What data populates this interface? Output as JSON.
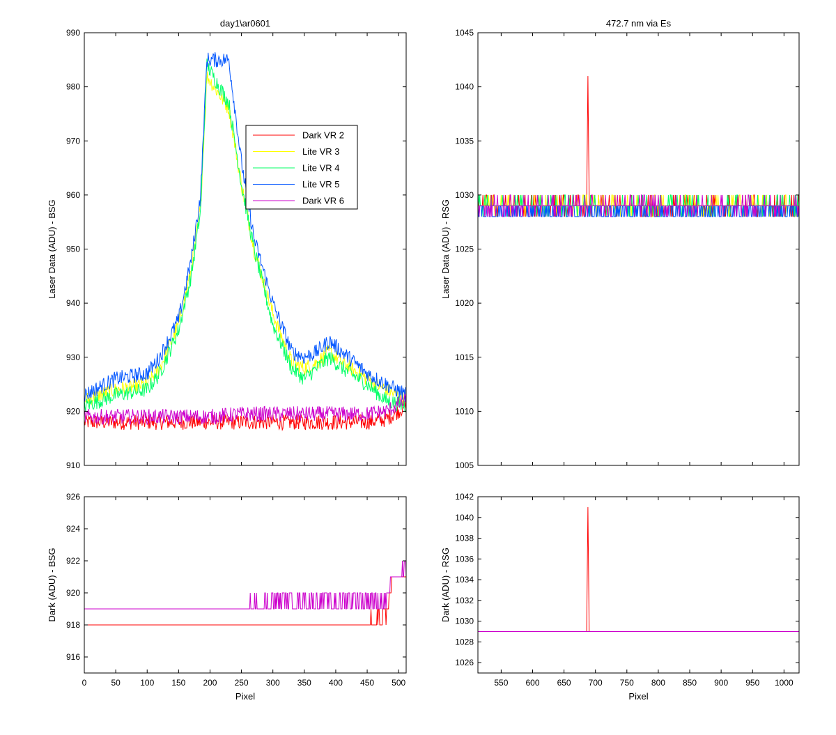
{
  "colors": {
    "dark_vr2": "#ff0000",
    "lite_vr3": "#ffff00",
    "lite_vr4": "#00ff66",
    "lite_vr5": "#0055ff",
    "dark_vr6": "#cc00cc"
  },
  "chart_data": [
    {
      "id": "top-left",
      "type": "line",
      "title": "day1\\ar0601",
      "xlabel": "",
      "ylabel": "Laser Data (ADU) - BSG",
      "xlim": [
        0,
        512
      ],
      "ylim": [
        910,
        990
      ],
      "xticks": [
        0,
        50,
        100,
        150,
        200,
        250,
        300,
        350,
        400,
        450,
        500
      ],
      "yticks": [
        910,
        920,
        930,
        940,
        950,
        960,
        970,
        980,
        990
      ],
      "legend": {
        "placement": "upper-center",
        "entries": [
          "Dark VR 2",
          "Lite VR 3",
          "Lite VR 4",
          "Lite VR 5",
          "Dark VR 6"
        ]
      },
      "series": [
        {
          "name": "Dark VR 2",
          "color_key": "dark_vr2",
          "x": [
            0,
            50,
            100,
            150,
            200,
            250,
            300,
            350,
            400,
            450,
            480,
            512
          ],
          "y": [
            918,
            918,
            918,
            918,
            918,
            918,
            918,
            918,
            918,
            918,
            918.5,
            921
          ]
        },
        {
          "name": "Lite VR 3",
          "color_key": "lite_vr3",
          "x": [
            0,
            50,
            100,
            120,
            150,
            170,
            185,
            195,
            230,
            250,
            270,
            300,
            330,
            350,
            370,
            390,
            410,
            450,
            480,
            512
          ],
          "y": [
            922,
            924,
            925,
            928,
            936,
            946,
            958,
            982,
            976,
            962,
            950,
            938,
            929,
            928,
            929,
            931,
            929,
            926,
            924,
            922
          ]
        },
        {
          "name": "Lite VR 4",
          "color_key": "lite_vr4",
          "x": [
            0,
            50,
            100,
            120,
            150,
            170,
            185,
            195,
            230,
            250,
            270,
            300,
            330,
            350,
            370,
            390,
            410,
            450,
            480,
            512
          ],
          "y": [
            921,
            923,
            924,
            927,
            935,
            945,
            957,
            984,
            977,
            962,
            950,
            936,
            928,
            926,
            928,
            930,
            928,
            925,
            922,
            921
          ]
        },
        {
          "name": "Lite VR 5",
          "color_key": "lite_vr5",
          "x": [
            0,
            50,
            100,
            120,
            150,
            170,
            185,
            195,
            230,
            250,
            270,
            300,
            330,
            350,
            370,
            390,
            410,
            450,
            480,
            512
          ],
          "y": [
            923,
            926,
            927,
            930,
            937,
            948,
            960,
            985,
            985,
            966,
            952,
            940,
            931,
            930,
            931,
            933,
            931,
            927,
            925,
            923
          ]
        },
        {
          "name": "Dark VR 6",
          "color_key": "dark_vr6",
          "x": [
            0,
            50,
            100,
            150,
            200,
            250,
            300,
            350,
            400,
            450,
            480,
            512
          ],
          "y": [
            919,
            919,
            919,
            919,
            919,
            919.5,
            919.5,
            919.5,
            919.5,
            919.5,
            920,
            922
          ]
        }
      ]
    },
    {
      "id": "top-right",
      "type": "line",
      "title": "472.7 nm via Es",
      "xlabel": "",
      "ylabel": "Laser Data (ADU) - RSG",
      "xlim": [
        513,
        1024
      ],
      "ylim": [
        1005,
        1045
      ],
      "xticks": [
        550,
        600,
        650,
        700,
        750,
        800,
        850,
        900,
        950,
        1000
      ],
      "yticks": [
        1005,
        1010,
        1015,
        1020,
        1025,
        1030,
        1035,
        1040,
        1045
      ],
      "series": [
        {
          "name": "Dark VR 2",
          "color_key": "dark_vr2",
          "x": [
            513,
            600,
            686,
            688,
            690,
            700,
            800,
            900,
            1024
          ],
          "y": [
            1029,
            1029,
            1029,
            1041,
            1029,
            1029,
            1029,
            1029,
            1029
          ]
        },
        {
          "name": "Lite VR 3",
          "color_key": "lite_vr3",
          "x": [
            513,
            700,
            1024
          ],
          "y": [
            1029,
            1029,
            1029
          ]
        },
        {
          "name": "Lite VR 4",
          "color_key": "lite_vr4",
          "x": [
            513,
            700,
            1024
          ],
          "y": [
            1029,
            1029,
            1029
          ]
        },
        {
          "name": "Lite VR 5",
          "color_key": "lite_vr5",
          "x": [
            513,
            700,
            1024
          ],
          "y": [
            1028.5,
            1028.5,
            1028.5
          ]
        },
        {
          "name": "Dark VR 6",
          "color_key": "dark_vr6",
          "x": [
            513,
            700,
            1024
          ],
          "y": [
            1029,
            1029,
            1029
          ]
        }
      ]
    },
    {
      "id": "bottom-left",
      "type": "line",
      "title": "",
      "xlabel": "Pixel",
      "ylabel": "Dark (ADU) - BSG",
      "xlim": [
        0,
        512
      ],
      "ylim": [
        915,
        926
      ],
      "xticks": [
        0,
        50,
        100,
        150,
        200,
        250,
        300,
        350,
        400,
        450,
        500
      ],
      "yticks": [
        916,
        918,
        920,
        922,
        924,
        926
      ],
      "series": [
        {
          "name": "Dark VR 2",
          "color_key": "dark_vr2",
          "x": [
            0,
            100,
            200,
            300,
            400,
            480,
            490,
            512
          ],
          "y": [
            918,
            918,
            918,
            918,
            918,
            918.5,
            921,
            921
          ]
        },
        {
          "name": "Dark VR 6",
          "color_key": "dark_vr6",
          "x": [
            0,
            100,
            200,
            300,
            400,
            480,
            490,
            512
          ],
          "y": [
            919,
            919,
            919,
            919.5,
            919.5,
            919.5,
            921,
            921.5
          ]
        }
      ]
    },
    {
      "id": "bottom-right",
      "type": "line",
      "title": "",
      "xlabel": "Pixel",
      "ylabel": "Dark (ADU) - RSG",
      "xlim": [
        513,
        1024
      ],
      "ylim": [
        1025,
        1042
      ],
      "xticks": [
        550,
        600,
        650,
        700,
        750,
        800,
        850,
        900,
        950,
        1000
      ],
      "yticks": [
        1026,
        1028,
        1030,
        1032,
        1034,
        1036,
        1038,
        1040,
        1042
      ],
      "series": [
        {
          "name": "Dark VR 2",
          "color_key": "dark_vr2",
          "x": [
            513,
            600,
            686,
            688,
            690,
            700,
            800,
            900,
            1024
          ],
          "y": [
            1029,
            1029,
            1029,
            1041,
            1029,
            1029,
            1029,
            1029,
            1029
          ]
        },
        {
          "name": "Dark VR 6",
          "color_key": "dark_vr6",
          "x": [
            513,
            700,
            900,
            1024
          ],
          "y": [
            1029,
            1029,
            1029,
            1029
          ]
        }
      ]
    }
  ]
}
